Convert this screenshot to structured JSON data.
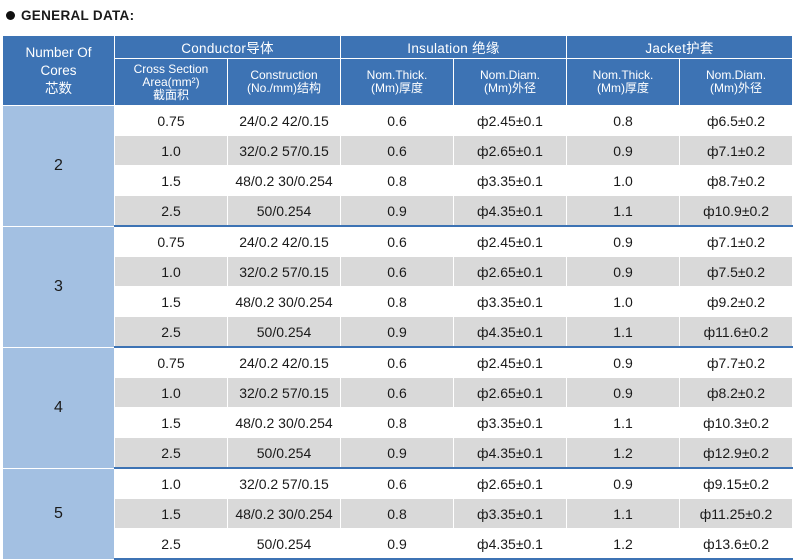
{
  "heading": "GENERAL DATA:",
  "headers": {
    "number_of_cores": [
      "Number Of",
      "Cores",
      "芯数"
    ],
    "conductor": "Conductor导体",
    "insulation": "Insulation 绝缘",
    "jacket": "Jacket护套",
    "cross_section": [
      "Cross Section",
      "Area(mm²)",
      "截面积"
    ],
    "construction": [
      "Construction",
      "(No./mm)结构"
    ],
    "ins_thick": [
      "Nom.Thick.",
      "(Mm)厚度"
    ],
    "ins_diam": [
      "Nom.Diam.",
      "(Mm)外径"
    ],
    "jkt_thick": [
      "Nom.Thick.",
      "(Mm)厚度"
    ],
    "jkt_diam": [
      "Nom.Diam.",
      "(Mm)外径"
    ]
  },
  "groups": [
    {
      "cores": "2",
      "rows": [
        {
          "area": "0.75",
          "construction": "24/0.2  42/0.15",
          "ins_thick": "0.6",
          "ins_diam": "ф2.45±0.1",
          "jkt_thick": "0.8",
          "jkt_diam": "ф6.5±0.2"
        },
        {
          "area": "1.0",
          "construction": "32/0.2  57/0.15",
          "ins_thick": "0.6",
          "ins_diam": "ф2.65±0.1",
          "jkt_thick": "0.9",
          "jkt_diam": "ф7.1±0.2"
        },
        {
          "area": "1.5",
          "construction": "48/0.2 30/0.254",
          "ins_thick": "0.8",
          "ins_diam": "ф3.35±0.1",
          "jkt_thick": "1.0",
          "jkt_diam": "ф8.7±0.2"
        },
        {
          "area": "2.5",
          "construction": "50/0.254",
          "ins_thick": "0.9",
          "ins_diam": "ф4.35±0.1",
          "jkt_thick": "1.1",
          "jkt_diam": "ф10.9±0.2"
        }
      ]
    },
    {
      "cores": "3",
      "rows": [
        {
          "area": "0.75",
          "construction": "24/0.2  42/0.15",
          "ins_thick": "0.6",
          "ins_diam": "ф2.45±0.1",
          "jkt_thick": "0.9",
          "jkt_diam": "ф7.1±0.2"
        },
        {
          "area": "1.0",
          "construction": "32/0.2  57/0.15",
          "ins_thick": "0.6",
          "ins_diam": "ф2.65±0.1",
          "jkt_thick": "0.9",
          "jkt_diam": "ф7.5±0.2"
        },
        {
          "area": "1.5",
          "construction": "48/0.2 30/0.254",
          "ins_thick": "0.8",
          "ins_diam": "ф3.35±0.1",
          "jkt_thick": "1.0",
          "jkt_diam": "ф9.2±0.2"
        },
        {
          "area": "2.5",
          "construction": "50/0.254",
          "ins_thick": "0.9",
          "ins_diam": "ф4.35±0.1",
          "jkt_thick": "1.1",
          "jkt_diam": "ф11.6±0.2"
        }
      ]
    },
    {
      "cores": "4",
      "rows": [
        {
          "area": "0.75",
          "construction": "24/0.2  42/0.15",
          "ins_thick": "0.6",
          "ins_diam": "ф2.45±0.1",
          "jkt_thick": "0.9",
          "jkt_diam": "ф7.7±0.2"
        },
        {
          "area": "1.0",
          "construction": "32/0.2  57/0.15",
          "ins_thick": "0.6",
          "ins_diam": "ф2.65±0.1",
          "jkt_thick": "0.9",
          "jkt_diam": "ф8.2±0.2"
        },
        {
          "area": "1.5",
          "construction": "48/0.2 30/0.254",
          "ins_thick": "0.8",
          "ins_diam": "ф3.35±0.1",
          "jkt_thick": "1.1",
          "jkt_diam": "ф10.3±0.2"
        },
        {
          "area": "2.5",
          "construction": "50/0.254",
          "ins_thick": "0.9",
          "ins_diam": "ф4.35±0.1",
          "jkt_thick": "1.2",
          "jkt_diam": "ф12.9±0.2"
        }
      ]
    },
    {
      "cores": "5",
      "rows": [
        {
          "area": "1.0",
          "construction": "32/0.2  57/0.15",
          "ins_thick": "0.6",
          "ins_diam": "ф2.65±0.1",
          "jkt_thick": "0.9",
          "jkt_diam": "ф9.15±0.2"
        },
        {
          "area": "1.5",
          "construction": "48/0.2 30/0.254",
          "ins_thick": "0.8",
          "ins_diam": "ф3.35±0.1",
          "jkt_thick": "1.1",
          "jkt_diam": "ф11.25±0.2"
        },
        {
          "area": "2.5",
          "construction": "50/0.254",
          "ins_thick": "0.9",
          "ins_diam": "ф4.35±0.1",
          "jkt_thick": "1.2",
          "jkt_diam": "ф13.6±0.2"
        }
      ]
    }
  ]
}
